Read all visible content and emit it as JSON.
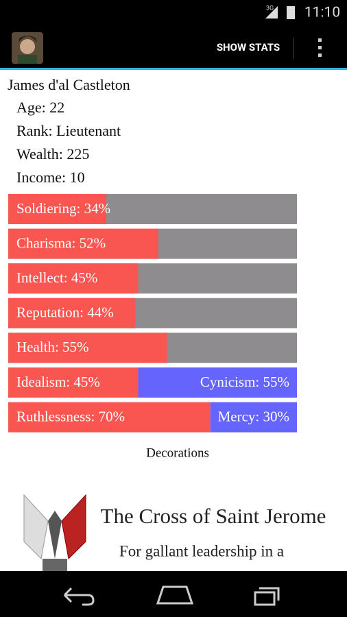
{
  "status_bar": {
    "network": "3G",
    "time": "11:10"
  },
  "action_bar": {
    "show_stats": "SHOW STATS"
  },
  "character": {
    "name": "James d'al Castleton",
    "details": [
      "Age: 22",
      "Rank: Lieutenant",
      "Wealth: 225",
      "Income: 10"
    ]
  },
  "stats": [
    {
      "label": "Soldiering: 34%",
      "value": 34
    },
    {
      "label": "Charisma: 52%",
      "value": 52
    },
    {
      "label": "Intellect: 45%",
      "value": 45
    },
    {
      "label": "Reputation: 44%",
      "value": 44
    },
    {
      "label": "Health: 55%",
      "value": 55
    }
  ],
  "opposed_stats": [
    {
      "left": {
        "label": "Idealism: 45%",
        "value": 45
      },
      "right": {
        "label": "Cynicism: 55%",
        "value": 55
      }
    },
    {
      "left": {
        "label": "Ruthlessness: 70%",
        "value": 70
      },
      "right": {
        "label": "Mercy: 30%",
        "value": 30
      }
    }
  ],
  "decorations": {
    "heading": "Decorations",
    "medal_title": "The Cross of Saint Jerome",
    "medal_text": "For gallant leadership in a"
  }
}
